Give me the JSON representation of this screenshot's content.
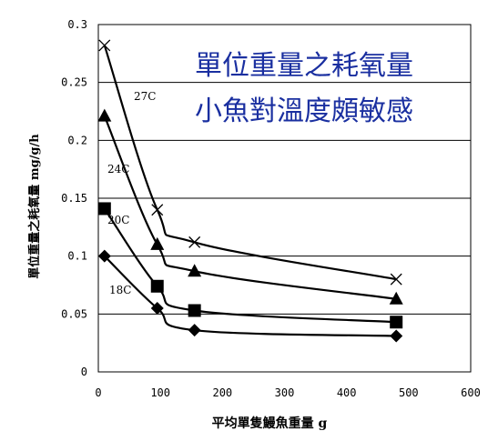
{
  "chart_data": {
    "type": "line",
    "title_lines": [
      "單位重量之耗氧量",
      "小魚對溫度頗敏感"
    ],
    "xlabel": "平均單隻鰻魚重量 g",
    "ylabel": "單位重量之耗氧量 mg/g/h",
    "xlim": [
      0,
      600
    ],
    "ylim": [
      0,
      0.3
    ],
    "x_ticks": [
      "0",
      "100",
      "200",
      "300",
      "400",
      "500",
      "600"
    ],
    "y_ticks": [
      "0",
      "0.05",
      "0.1",
      "0.15",
      "0.2",
      "0.25",
      "0.3"
    ],
    "grid": "horizontal",
    "series": [
      {
        "name": "27C",
        "marker": "x",
        "x": [
          10,
          95,
          155,
          480
        ],
        "y": [
          0.282,
          0.14,
          0.112,
          0.08
        ]
      },
      {
        "name": "24C",
        "marker": "triangle",
        "x": [
          10,
          95,
          155,
          480
        ],
        "y": [
          0.221,
          0.11,
          0.087,
          0.063
        ]
      },
      {
        "name": "20C",
        "marker": "square",
        "x": [
          10,
          95,
          155,
          480
        ],
        "y": [
          0.141,
          0.074,
          0.053,
          0.043
        ]
      },
      {
        "name": "18C",
        "marker": "diamond",
        "x": [
          10,
          95,
          155,
          480
        ],
        "y": [
          0.1,
          0.055,
          0.036,
          0.031
        ]
      }
    ]
  }
}
